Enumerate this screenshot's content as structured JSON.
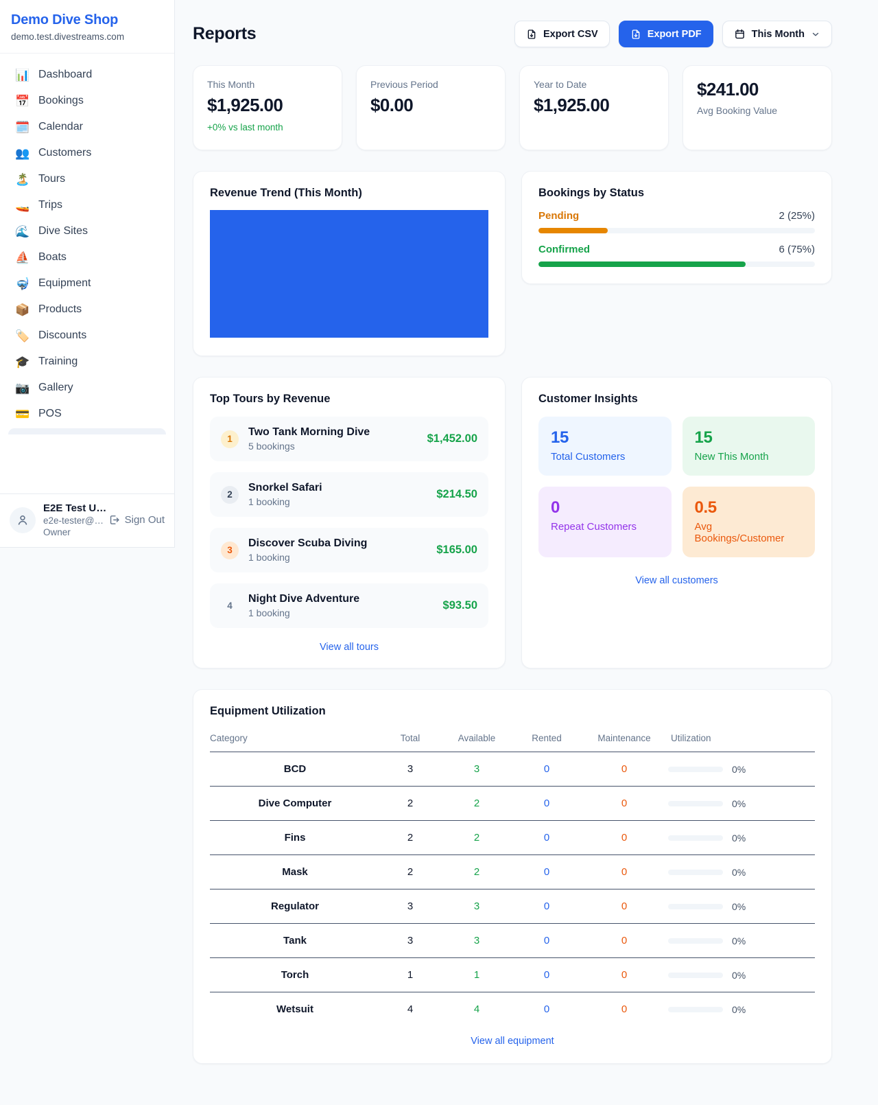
{
  "colors": {
    "accent_blue": "#2563eb",
    "success_green": "#16a34a",
    "pending_orange": "#d97706",
    "pending_bar": "#e68600",
    "repeat_purple": "#9333ea",
    "deep_orange": "#ea580c"
  },
  "sidebar": {
    "shop_name": "Demo Dive Shop",
    "shop_domain": "demo.test.divestreams.com",
    "nav": [
      {
        "icon": "📊",
        "icon_name": "bar-chart-icon",
        "label": "Dashboard"
      },
      {
        "icon": "📅",
        "icon_name": "calendar-date-icon",
        "label": "Bookings"
      },
      {
        "icon": "🗓️",
        "icon_name": "calendar-pad-icon",
        "label": "Calendar"
      },
      {
        "icon": "👥",
        "icon_name": "people-icon",
        "label": "Customers"
      },
      {
        "icon": "🏝️",
        "icon_name": "island-icon",
        "label": "Tours"
      },
      {
        "icon": "🚤",
        "icon_name": "speedboat-icon",
        "label": "Trips"
      },
      {
        "icon": "🌊",
        "icon_name": "wave-icon",
        "label": "Dive Sites"
      },
      {
        "icon": "⛵",
        "icon_name": "sailboat-icon",
        "label": "Boats"
      },
      {
        "icon": "🤿",
        "icon_name": "diving-mask-icon",
        "label": "Equipment"
      },
      {
        "icon": "📦",
        "icon_name": "package-icon",
        "label": "Products"
      },
      {
        "icon": "🏷️",
        "icon_name": "tag-icon",
        "label": "Discounts"
      },
      {
        "icon": "🎓",
        "icon_name": "graduation-cap-icon",
        "label": "Training"
      },
      {
        "icon": "📷",
        "icon_name": "camera-icon",
        "label": "Gallery"
      },
      {
        "icon": "💳",
        "icon_name": "credit-card-icon",
        "label": "POS"
      }
    ],
    "user": {
      "name": "E2E Test U…",
      "email": "e2e-tester@…",
      "role": "Owner",
      "sign_out_label": "Sign Out"
    }
  },
  "header": {
    "title": "Reports",
    "export_csv_label": "Export CSV",
    "export_pdf_label": "Export PDF",
    "period_label": "This Month"
  },
  "stats": [
    {
      "label": "This Month",
      "value": "$1,925.00",
      "delta": "+0% vs last month"
    },
    {
      "label": "Previous Period",
      "value": "$0.00"
    },
    {
      "label": "Year to Date",
      "value": "$1,925.00"
    },
    {
      "label": "Avg Booking Value",
      "value": "$241.00",
      "value_first": true
    }
  ],
  "revenue_trend": {
    "title": "Revenue Trend (This Month)"
  },
  "bookings_by_status": {
    "title": "Bookings by Status",
    "rows": [
      {
        "label": "Pending",
        "count_text": "2 (25%)",
        "percent": 25,
        "label_color": "#d97706",
        "bar_color": "#e68600"
      },
      {
        "label": "Confirmed",
        "count_text": "6 (75%)",
        "percent": 75,
        "label_color": "#16a34a",
        "bar_color": "#16a34a"
      }
    ]
  },
  "top_tours": {
    "title": "Top Tours by Revenue",
    "items": [
      {
        "rank": "1",
        "name": "Two Tank Morning Dive",
        "bookings": "5 bookings",
        "revenue": "$1,452.00"
      },
      {
        "rank": "2",
        "name": "Snorkel Safari",
        "bookings": "1 booking",
        "revenue": "$214.50"
      },
      {
        "rank": "3",
        "name": "Discover Scuba Diving",
        "bookings": "1 booking",
        "revenue": "$165.00"
      },
      {
        "rank": "4",
        "name": "Night Dive Adventure",
        "bookings": "1 booking",
        "revenue": "$93.50"
      }
    ],
    "view_all_label": "View all tours"
  },
  "customer_insights": {
    "title": "Customer Insights",
    "tiles": [
      {
        "value": "15",
        "label": "Total Customers",
        "theme": "blue"
      },
      {
        "value": "15",
        "label": "New This Month",
        "theme": "green"
      },
      {
        "value": "0",
        "label": "Repeat Customers",
        "theme": "purple"
      },
      {
        "value": "0.5",
        "label": "Avg Bookings/Customer",
        "theme": "orange"
      }
    ],
    "view_all_label": "View all customers"
  },
  "equipment": {
    "title": "Equipment Utilization",
    "columns": [
      "Category",
      "Total",
      "Available",
      "Rented",
      "Maintenance",
      "Utilization"
    ],
    "rows": [
      {
        "category": "BCD",
        "total": "3",
        "available": "3",
        "rented": "0",
        "maintenance": "0",
        "utilization": "0%"
      },
      {
        "category": "Dive Computer",
        "total": "2",
        "available": "2",
        "rented": "0",
        "maintenance": "0",
        "utilization": "0%"
      },
      {
        "category": "Fins",
        "total": "2",
        "available": "2",
        "rented": "0",
        "maintenance": "0",
        "utilization": "0%"
      },
      {
        "category": "Mask",
        "total": "2",
        "available": "2",
        "rented": "0",
        "maintenance": "0",
        "utilization": "0%"
      },
      {
        "category": "Regulator",
        "total": "3",
        "available": "3",
        "rented": "0",
        "maintenance": "0",
        "utilization": "0%"
      },
      {
        "category": "Tank",
        "total": "3",
        "available": "3",
        "rented": "0",
        "maintenance": "0",
        "utilization": "0%"
      },
      {
        "category": "Torch",
        "total": "1",
        "available": "1",
        "rented": "0",
        "maintenance": "0",
        "utilization": "0%"
      },
      {
        "category": "Wetsuit",
        "total": "4",
        "available": "4",
        "rented": "0",
        "maintenance": "0",
        "utilization": "0%"
      }
    ],
    "view_all_label": "View all equipment"
  },
  "chart_data": [
    {
      "type": "bar",
      "title": "Revenue Trend (This Month)",
      "categories": [
        "This Month"
      ],
      "values": [
        1925
      ],
      "xlabel": "",
      "ylabel": "",
      "legend": false,
      "grid": false,
      "note": "single full-width solid bar filling entire plot area, no axes or tick labels shown",
      "bar_color": "#2563eb"
    },
    {
      "type": "bar",
      "title": "Bookings by Status",
      "categories": [
        "Pending",
        "Confirmed"
      ],
      "values": [
        2,
        6
      ],
      "percent": [
        25,
        75
      ],
      "xlabel": "",
      "ylabel": "",
      "legend": false,
      "bar_colors": [
        "#e68600",
        "#16a34a"
      ]
    }
  ]
}
